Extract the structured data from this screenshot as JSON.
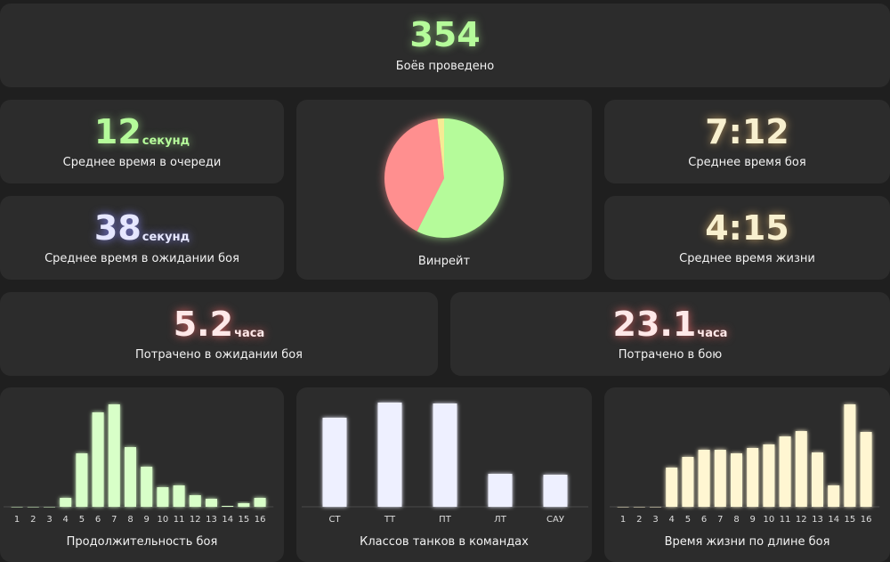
{
  "colors": {
    "green": "#b5fb9a",
    "red": "#ff8f8f",
    "yellow": "#f6ea94",
    "blue": "#e6e7ff",
    "cream": "#f8f0cf",
    "pink": "#ffe8e8"
  },
  "battles": {
    "value": "354",
    "label": "Боёв проведено"
  },
  "queue": {
    "value": "12",
    "unit": "секунд",
    "label": "Среднее время в очереди"
  },
  "wait": {
    "value": "38",
    "unit": "секунд",
    "label": "Среднее время в ожидании боя"
  },
  "winrate": {
    "label": "Винрейт"
  },
  "battle_time": {
    "value": "7:12",
    "label": "Среднее время боя"
  },
  "life_time": {
    "value": "4:15",
    "label": "Среднее время жизни"
  },
  "spent_wait": {
    "value": "5.2",
    "unit": "часа",
    "label": "Потрачено в ожидании боя"
  },
  "spent_battle": {
    "value": "23.1",
    "unit": "часа",
    "label": "Потрачено в бою"
  },
  "chart_data": [
    {
      "type": "pie",
      "label": "Винрейт",
      "slices": [
        {
          "value": 57.5,
          "color": "#b5fb9a"
        },
        {
          "value": 40.7,
          "color": "#ff8f8f"
        },
        {
          "value": 1.8,
          "color": "#f6ea94"
        }
      ]
    },
    {
      "type": "bar",
      "xlabel": "Продолжительность боя",
      "color": "#d8ffc8",
      "categories": [
        "1",
        "2",
        "3",
        "4",
        "5",
        "6",
        "7",
        "8",
        "9",
        "10",
        "11",
        "12",
        "13",
        "14",
        "15",
        "16"
      ],
      "values": [
        0,
        0,
        0,
        10,
        60,
        106,
        115,
        67,
        45,
        22,
        24,
        13,
        9,
        1,
        4,
        10
      ]
    },
    {
      "type": "bar",
      "xlabel": "Классов танков в командах",
      "color": "#eef0ff",
      "categories": [
        "СТ",
        "ТТ",
        "ПТ",
        "ЛТ",
        "САУ"
      ],
      "values": [
        100,
        117,
        116,
        37,
        36
      ]
    },
    {
      "type": "bar",
      "xlabel": "Время жизни по длине боя",
      "color": "#fff6d2",
      "categories": [
        "1",
        "2",
        "3",
        "4",
        "5",
        "6",
        "7",
        "8",
        "9",
        "10",
        "11",
        "12",
        "13",
        "14",
        "15",
        "16"
      ],
      "values": [
        0,
        0,
        0,
        44,
        56,
        64,
        64,
        60,
        66,
        70,
        79,
        85,
        61,
        24,
        115,
        84
      ]
    }
  ]
}
